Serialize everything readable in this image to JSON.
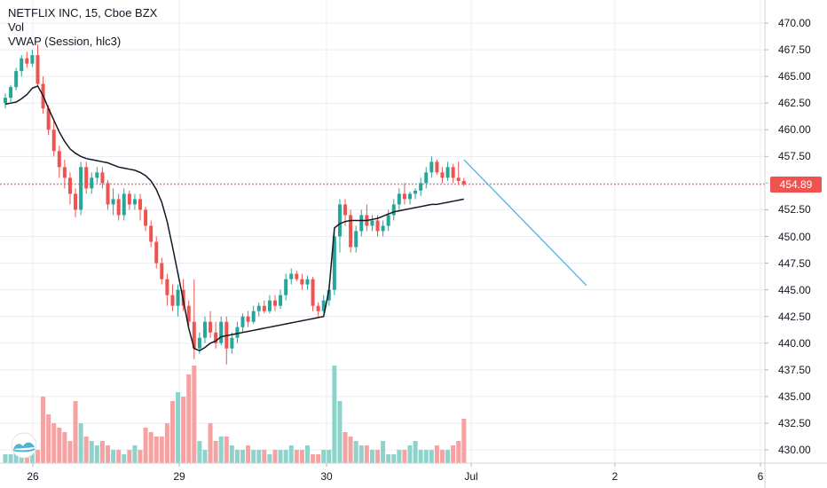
{
  "legend": {
    "symbol": "NETFLIX INC, 15, Cboe BZX",
    "indicator1": "Vol",
    "indicator2": "VWAP (Session, hlc3)"
  },
  "last_price_label": "454.89",
  "colors": {
    "up": "#26a69a",
    "down": "#ef5350",
    "vol_up": "#8ed3cb",
    "vol_down": "#f5a3a2",
    "vwap": "#131722",
    "projection": "#4fb4d6",
    "grid": "#e9ecf2"
  },
  "chart_data": {
    "type": "candlestick",
    "y_axis": {
      "ticks": [
        "470.00",
        "467.50",
        "465.00",
        "462.50",
        "460.00",
        "457.50",
        "455.00",
        "452.50",
        "450.00",
        "447.50",
        "445.00",
        "442.50",
        "440.00",
        "437.50",
        "435.00",
        "432.50",
        "430.00"
      ],
      "range": [
        429,
        472
      ]
    },
    "x_axis": {
      "ticks": [
        "26",
        "29",
        "30",
        "Jul",
        "2",
        "6"
      ]
    },
    "last_price": 454.89,
    "candles": [
      [
        462.5,
        463.4,
        462.0,
        463.0
      ],
      [
        463.0,
        464.2,
        462.6,
        464.0
      ],
      [
        464.0,
        465.8,
        463.7,
        465.5
      ],
      [
        465.5,
        467.0,
        465.0,
        466.7
      ],
      [
        466.7,
        467.3,
        465.8,
        466.2
      ],
      [
        466.2,
        467.5,
        465.9,
        467.0
      ],
      [
        467.0,
        468.0,
        464.0,
        464.3
      ],
      [
        464.3,
        465.0,
        461.5,
        462.0
      ],
      [
        462.0,
        462.3,
        459.5,
        460.0
      ],
      [
        460.0,
        460.8,
        457.5,
        458.0
      ],
      [
        458.0,
        458.5,
        455.5,
        456.5
      ],
      [
        456.5,
        457.2,
        454.5,
        455.5
      ],
      [
        455.5,
        456.0,
        453.0,
        454.0
      ],
      [
        454.0,
        454.5,
        451.8,
        452.5
      ],
      [
        452.5,
        457.0,
        452.0,
        456.5
      ],
      [
        456.5,
        457.0,
        454.0,
        454.5
      ],
      [
        454.5,
        456.0,
        454.0,
        455.5
      ],
      [
        455.5,
        456.5,
        455.0,
        456.0
      ],
      [
        456.0,
        456.5,
        454.5,
        455.0
      ],
      [
        455.0,
        455.3,
        452.5,
        453.0
      ],
      [
        453.0,
        454.5,
        452.0,
        453.5
      ],
      [
        453.5,
        454.0,
        451.5,
        452.0
      ],
      [
        452.0,
        454.5,
        451.5,
        454.0
      ],
      [
        454.0,
        454.3,
        452.5,
        453.0
      ],
      [
        453.0,
        454.0,
        452.5,
        453.5
      ],
      [
        453.5,
        454.0,
        451.5,
        452.5
      ],
      [
        452.5,
        452.8,
        450.5,
        451.0
      ],
      [
        451.0,
        451.5,
        449.0,
        449.5
      ],
      [
        449.5,
        450.0,
        447.0,
        447.5
      ],
      [
        447.5,
        448.0,
        445.5,
        446.0
      ],
      [
        446.0,
        446.5,
        443.5,
        444.5
      ],
      [
        444.5,
        445.5,
        443.0,
        443.5
      ],
      [
        443.5,
        445.5,
        442.5,
        445.0
      ],
      [
        445.0,
        446.0,
        443.0,
        443.5
      ],
      [
        443.5,
        444.0,
        441.5,
        442.0
      ],
      [
        442.0,
        446.0,
        438.5,
        439.5
      ],
      [
        439.5,
        441.0,
        439.0,
        440.5
      ],
      [
        440.5,
        442.5,
        440.0,
        442.0
      ],
      [
        442.0,
        443.0,
        440.5,
        441.0
      ],
      [
        441.0,
        442.0,
        439.5,
        440.0
      ],
      [
        440.0,
        442.5,
        439.8,
        442.0
      ],
      [
        442.0,
        442.5,
        438.0,
        439.5
      ],
      [
        439.5,
        441.0,
        439.0,
        440.5
      ],
      [
        440.5,
        442.0,
        440.0,
        441.5
      ],
      [
        441.5,
        442.8,
        441.0,
        442.5
      ],
      [
        442.5,
        443.0,
        441.5,
        442.0
      ],
      [
        442.0,
        443.5,
        441.8,
        443.0
      ],
      [
        443.0,
        443.8,
        442.5,
        443.5
      ],
      [
        443.5,
        444.0,
        442.8,
        443.0
      ],
      [
        443.0,
        444.5,
        442.8,
        444.0
      ],
      [
        444.0,
        444.5,
        443.0,
        443.5
      ],
      [
        443.5,
        445.0,
        443.2,
        444.5
      ],
      [
        444.5,
        446.5,
        444.0,
        446.0
      ],
      [
        446.0,
        447.0,
        445.5,
        446.5
      ],
      [
        446.5,
        446.8,
        445.8,
        446.0
      ],
      [
        446.0,
        446.5,
        445.0,
        445.5
      ],
      [
        445.5,
        446.3,
        445.0,
        446.0
      ],
      [
        446.0,
        446.2,
        443.0,
        443.5
      ],
      [
        443.5,
        443.8,
        442.5,
        443.0
      ],
      [
        443.0,
        444.5,
        442.8,
        444.0
      ],
      [
        444.0,
        445.5,
        443.5,
        445.0
      ],
      [
        445.0,
        450.5,
        444.5,
        450.0
      ],
      [
        450.0,
        453.5,
        448.5,
        453.0
      ],
      [
        453.0,
        453.5,
        451.0,
        452.0
      ],
      [
        452.0,
        452.5,
        448.5,
        449.0
      ],
      [
        449.0,
        451.0,
        448.5,
        450.5
      ],
      [
        450.5,
        452.5,
        450.0,
        452.0
      ],
      [
        452.0,
        453.0,
        450.5,
        451.0
      ],
      [
        451.0,
        452.0,
        450.5,
        451.5
      ],
      [
        451.5,
        452.0,
        450.0,
        450.5
      ],
      [
        450.5,
        451.5,
        450.0,
        451.0
      ],
      [
        451.0,
        452.5,
        450.5,
        452.0
      ],
      [
        452.0,
        453.5,
        451.5,
        453.0
      ],
      [
        453.0,
        454.5,
        452.5,
        454.0
      ],
      [
        454.0,
        455.0,
        453.0,
        453.5
      ],
      [
        453.5,
        454.2,
        453.0,
        454.0
      ],
      [
        454.0,
        454.5,
        453.5,
        454.3
      ],
      [
        454.3,
        455.5,
        453.8,
        455.0
      ],
      [
        455.0,
        456.5,
        454.5,
        456.0
      ],
      [
        456.0,
        457.5,
        455.5,
        457.0
      ],
      [
        457.0,
        457.2,
        455.8,
        456.0
      ],
      [
        456.0,
        456.5,
        455.0,
        455.5
      ],
      [
        455.5,
        457.0,
        455.2,
        456.5
      ],
      [
        456.5,
        456.8,
        455.0,
        455.5
      ],
      [
        455.5,
        457.0,
        454.8,
        455.2
      ],
      [
        455.2,
        455.5,
        454.7,
        454.89
      ]
    ],
    "volume": [
      2,
      2,
      3,
      3,
      3,
      3,
      3,
      15,
      11,
      9,
      8,
      7,
      5,
      14,
      9,
      6,
      5,
      4,
      5,
      4,
      3,
      3,
      2,
      3,
      4,
      3,
      8,
      7,
      6,
      6,
      9,
      14,
      16,
      15,
      20,
      22,
      5,
      3,
      9,
      5,
      6,
      6,
      4,
      3,
      3,
      4,
      3,
      3,
      3,
      2,
      3,
      3,
      3,
      4,
      3,
      3,
      4,
      2,
      2,
      3,
      3,
      22,
      14,
      7,
      6,
      5,
      4,
      4,
      3,
      3,
      5,
      2,
      2,
      3,
      3,
      4,
      5,
      3,
      3,
      3,
      4,
      3,
      3,
      4,
      5,
      10
    ],
    "vwap": [
      462.4,
      462.5,
      462.6,
      462.9,
      463.3,
      463.9,
      464.1,
      463.2,
      462.0,
      460.9,
      459.8,
      458.9,
      458.2,
      457.8,
      457.5,
      457.3,
      457.2,
      457.1,
      457.0,
      456.9,
      456.7,
      456.5,
      456.4,
      456.3,
      456.2,
      456.0,
      455.7,
      455.2,
      454.4,
      453.2,
      451.4,
      449.0,
      446.5,
      444.0,
      441.4,
      439.5,
      439.3,
      439.6,
      440.0,
      440.2,
      440.6,
      440.7,
      440.8,
      440.9,
      441.0,
      441.1,
      441.2,
      441.3,
      441.4,
      441.5,
      441.6,
      441.7,
      441.8,
      441.9,
      442.0,
      442.1,
      442.2,
      442.3,
      442.4,
      442.5,
      445.0,
      450.8,
      451.2,
      451.4,
      451.5,
      451.5,
      451.5,
      451.5,
      451.6,
      451.7,
      451.9,
      452.1,
      452.3,
      452.4,
      452.5,
      452.6,
      452.7,
      452.8,
      452.9,
      453.0,
      453.0,
      453.1,
      453.2,
      453.3,
      453.4,
      453.5
    ],
    "projection": [
      [
        457.2,
        445.4
      ]
    ],
    "grid": true
  }
}
